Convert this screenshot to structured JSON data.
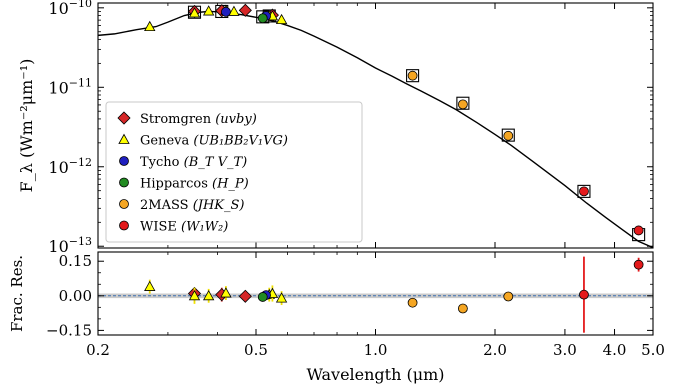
{
  "chart_data": [
    {
      "type": "scatter",
      "panel": "spectral energy distribution",
      "ylabel": "F_λ (Wm⁻²μm⁻¹)",
      "xscale": "log",
      "yscale": "log",
      "xlim": [
        0.2,
        5.0
      ],
      "ylim": [
        9.5e-14,
        1.15e-10
      ],
      "y_ticks": [
        {
          "value": 1e-10,
          "mant": "10",
          "exp": "−10"
        },
        {
          "value": 1e-11,
          "mant": "10",
          "exp": "−11"
        },
        {
          "value": 1e-12,
          "mant": "10",
          "exp": "−12"
        },
        {
          "value": 1e-13,
          "mant": "10",
          "exp": "−13"
        }
      ],
      "legend_position": "lower-left",
      "legend": [
        {
          "name": "Stromgren",
          "suffix": "(uvby)",
          "marker": "diamond",
          "color": "#d62728"
        },
        {
          "name": "Geneva",
          "suffix": "(UB₁BB₂V₁VG)",
          "marker": "triangle",
          "color": "#ffff00"
        },
        {
          "name": "Tycho",
          "suffix": "(B_T V_T)",
          "marker": "circle",
          "color": "#1f1fbf"
        },
        {
          "name": "Hipparcos",
          "suffix": "(H_P)",
          "marker": "circle",
          "color": "#228b22"
        },
        {
          "name": "2MASS",
          "suffix": "(JHK_S)",
          "marker": "circle",
          "color": "#f5a623"
        },
        {
          "name": "WISE",
          "suffix": "(W₁W₂)",
          "marker": "circle",
          "color": "#e41a1c"
        }
      ],
      "model_curve": {
        "x": [
          0.2,
          0.22,
          0.25,
          0.28,
          0.3,
          0.33,
          0.36,
          0.38,
          0.4,
          0.43,
          0.46,
          0.5,
          0.53,
          0.56,
          0.6,
          0.65,
          0.7,
          0.8,
          0.9,
          1.0,
          1.1,
          1.2,
          1.3,
          1.45,
          1.6,
          1.8,
          2.0,
          2.2,
          2.5,
          3.0,
          3.4,
          3.8,
          4.2,
          4.6,
          5.0
        ],
        "y": [
          4.5e-11,
          4.7e-11,
          5.3e-11,
          5.8e-11,
          6.6e-11,
          8e-11,
          8.8e-11,
          9e-11,
          8.9e-11,
          8.6e-11,
          8.2e-11,
          7.6e-11,
          7.2e-11,
          6.7e-11,
          6e-11,
          5.2e-11,
          4.4e-11,
          3.2e-11,
          2.35e-11,
          1.75e-11,
          1.38e-11,
          1.1e-11,
          9e-12,
          6.8e-12,
          5.2e-12,
          3.6e-12,
          2.55e-12,
          1.85e-12,
          1.15e-12,
          5.8e-13,
          3.5e-13,
          2.3e-13,
          1.6e-13,
          1.15e-13,
          9.6e-14
        ]
      },
      "model_points": [
        {
          "x": 0.35,
          "y": 8.8e-11
        },
        {
          "x": 0.41,
          "y": 9e-11
        },
        {
          "x": 0.52,
          "y": 7.7e-11
        },
        {
          "x": 0.54,
          "y": 7.9e-11
        },
        {
          "x": 1.24,
          "y": 1.4e-11
        },
        {
          "x": 1.66,
          "y": 6.3e-12
        },
        {
          "x": 2.16,
          "y": 2.5e-12
        },
        {
          "x": 3.35,
          "y": 4.9e-13
        },
        {
          "x": 4.6,
          "y": 1.4e-13
        }
      ],
      "series": [
        {
          "name": "Stromgren",
          "x": [
            0.35,
            0.41,
            0.47,
            0.55
          ],
          "y": [
            9e-11,
            9.2e-11,
            9.3e-11,
            8.1e-11
          ]
        },
        {
          "name": "Geneva",
          "x": [
            0.27,
            0.35,
            0.38,
            0.42,
            0.44,
            0.54,
            0.55,
            0.58
          ],
          "y": [
            5.8e-11,
            8.6e-11,
            9.1e-11,
            9.3e-11,
            9e-11,
            8e-11,
            7.9e-11,
            7.1e-11
          ]
        },
        {
          "name": "Tycho",
          "x": [
            0.42,
            0.53
          ],
          "y": [
            8.9e-11,
            7.9e-11
          ]
        },
        {
          "name": "Hipparcos",
          "x": [
            0.52
          ],
          "y": [
            7.4e-11
          ]
        },
        {
          "name": "2MASS",
          "x": [
            1.24,
            1.66,
            2.16
          ],
          "y": [
            1.4e-11,
            6.1e-12,
            2.45e-12
          ]
        },
        {
          "name": "WISE",
          "x": [
            3.35,
            4.6
          ],
          "y": [
            4.9e-13,
            1.58e-13
          ]
        }
      ]
    },
    {
      "type": "scatter",
      "panel": "fractional residuals",
      "xlabel": "Wavelength (μm)",
      "ylabel": "Frac. Res.",
      "xscale": "log",
      "xlim": [
        0.2,
        5.0
      ],
      "ylim": [
        -0.17,
        0.19
      ],
      "x_ticks": [
        0.2,
        0.5,
        1.0,
        2.0,
        3.0,
        4.0,
        5.0
      ],
      "x_tick_labels": [
        "0.2",
        "0.5",
        "1.0",
        "2.0",
        "3.0",
        "4.0",
        "5.0"
      ],
      "y_ticks": [
        0.15,
        0.0,
        -0.15
      ],
      "y_tick_labels": [
        "0.15",
        "0.00",
        "−0.15"
      ],
      "series": [
        {
          "name": "Stromgren",
          "x": [
            0.35,
            0.41,
            0.47
          ],
          "y": [
            0.01,
            0.005,
            -0.002
          ],
          "err": [
            0.025,
            0.03,
            0.02
          ]
        },
        {
          "name": "Geneva",
          "x": [
            0.27,
            0.35,
            0.38,
            0.42,
            0.54,
            0.55,
            0.58
          ],
          "y": [
            0.04,
            0.0,
            0.0,
            0.012,
            0.005,
            0.01,
            -0.01
          ],
          "err": [
            0.03,
            0.035,
            0.03,
            0.03,
            0.03,
            0.035,
            0.03
          ]
        },
        {
          "name": "Tycho",
          "x": [
            0.53
          ],
          "y": [
            0.003
          ],
          "err": [
            0.02
          ]
        },
        {
          "name": "Hipparcos",
          "x": [
            0.52
          ],
          "y": [
            -0.005
          ],
          "err": [
            0.01
          ]
        },
        {
          "name": "2MASS",
          "x": [
            1.24,
            1.66,
            2.16
          ],
          "y": [
            -0.03,
            -0.055,
            -0.003
          ],
          "err": [
            0.0,
            0.0,
            0.0
          ]
        },
        {
          "name": "WISE",
          "x": [
            3.35,
            4.6
          ],
          "y": [
            0.005,
            0.135
          ],
          "err": [
            0.165,
            0.03
          ]
        }
      ]
    }
  ]
}
